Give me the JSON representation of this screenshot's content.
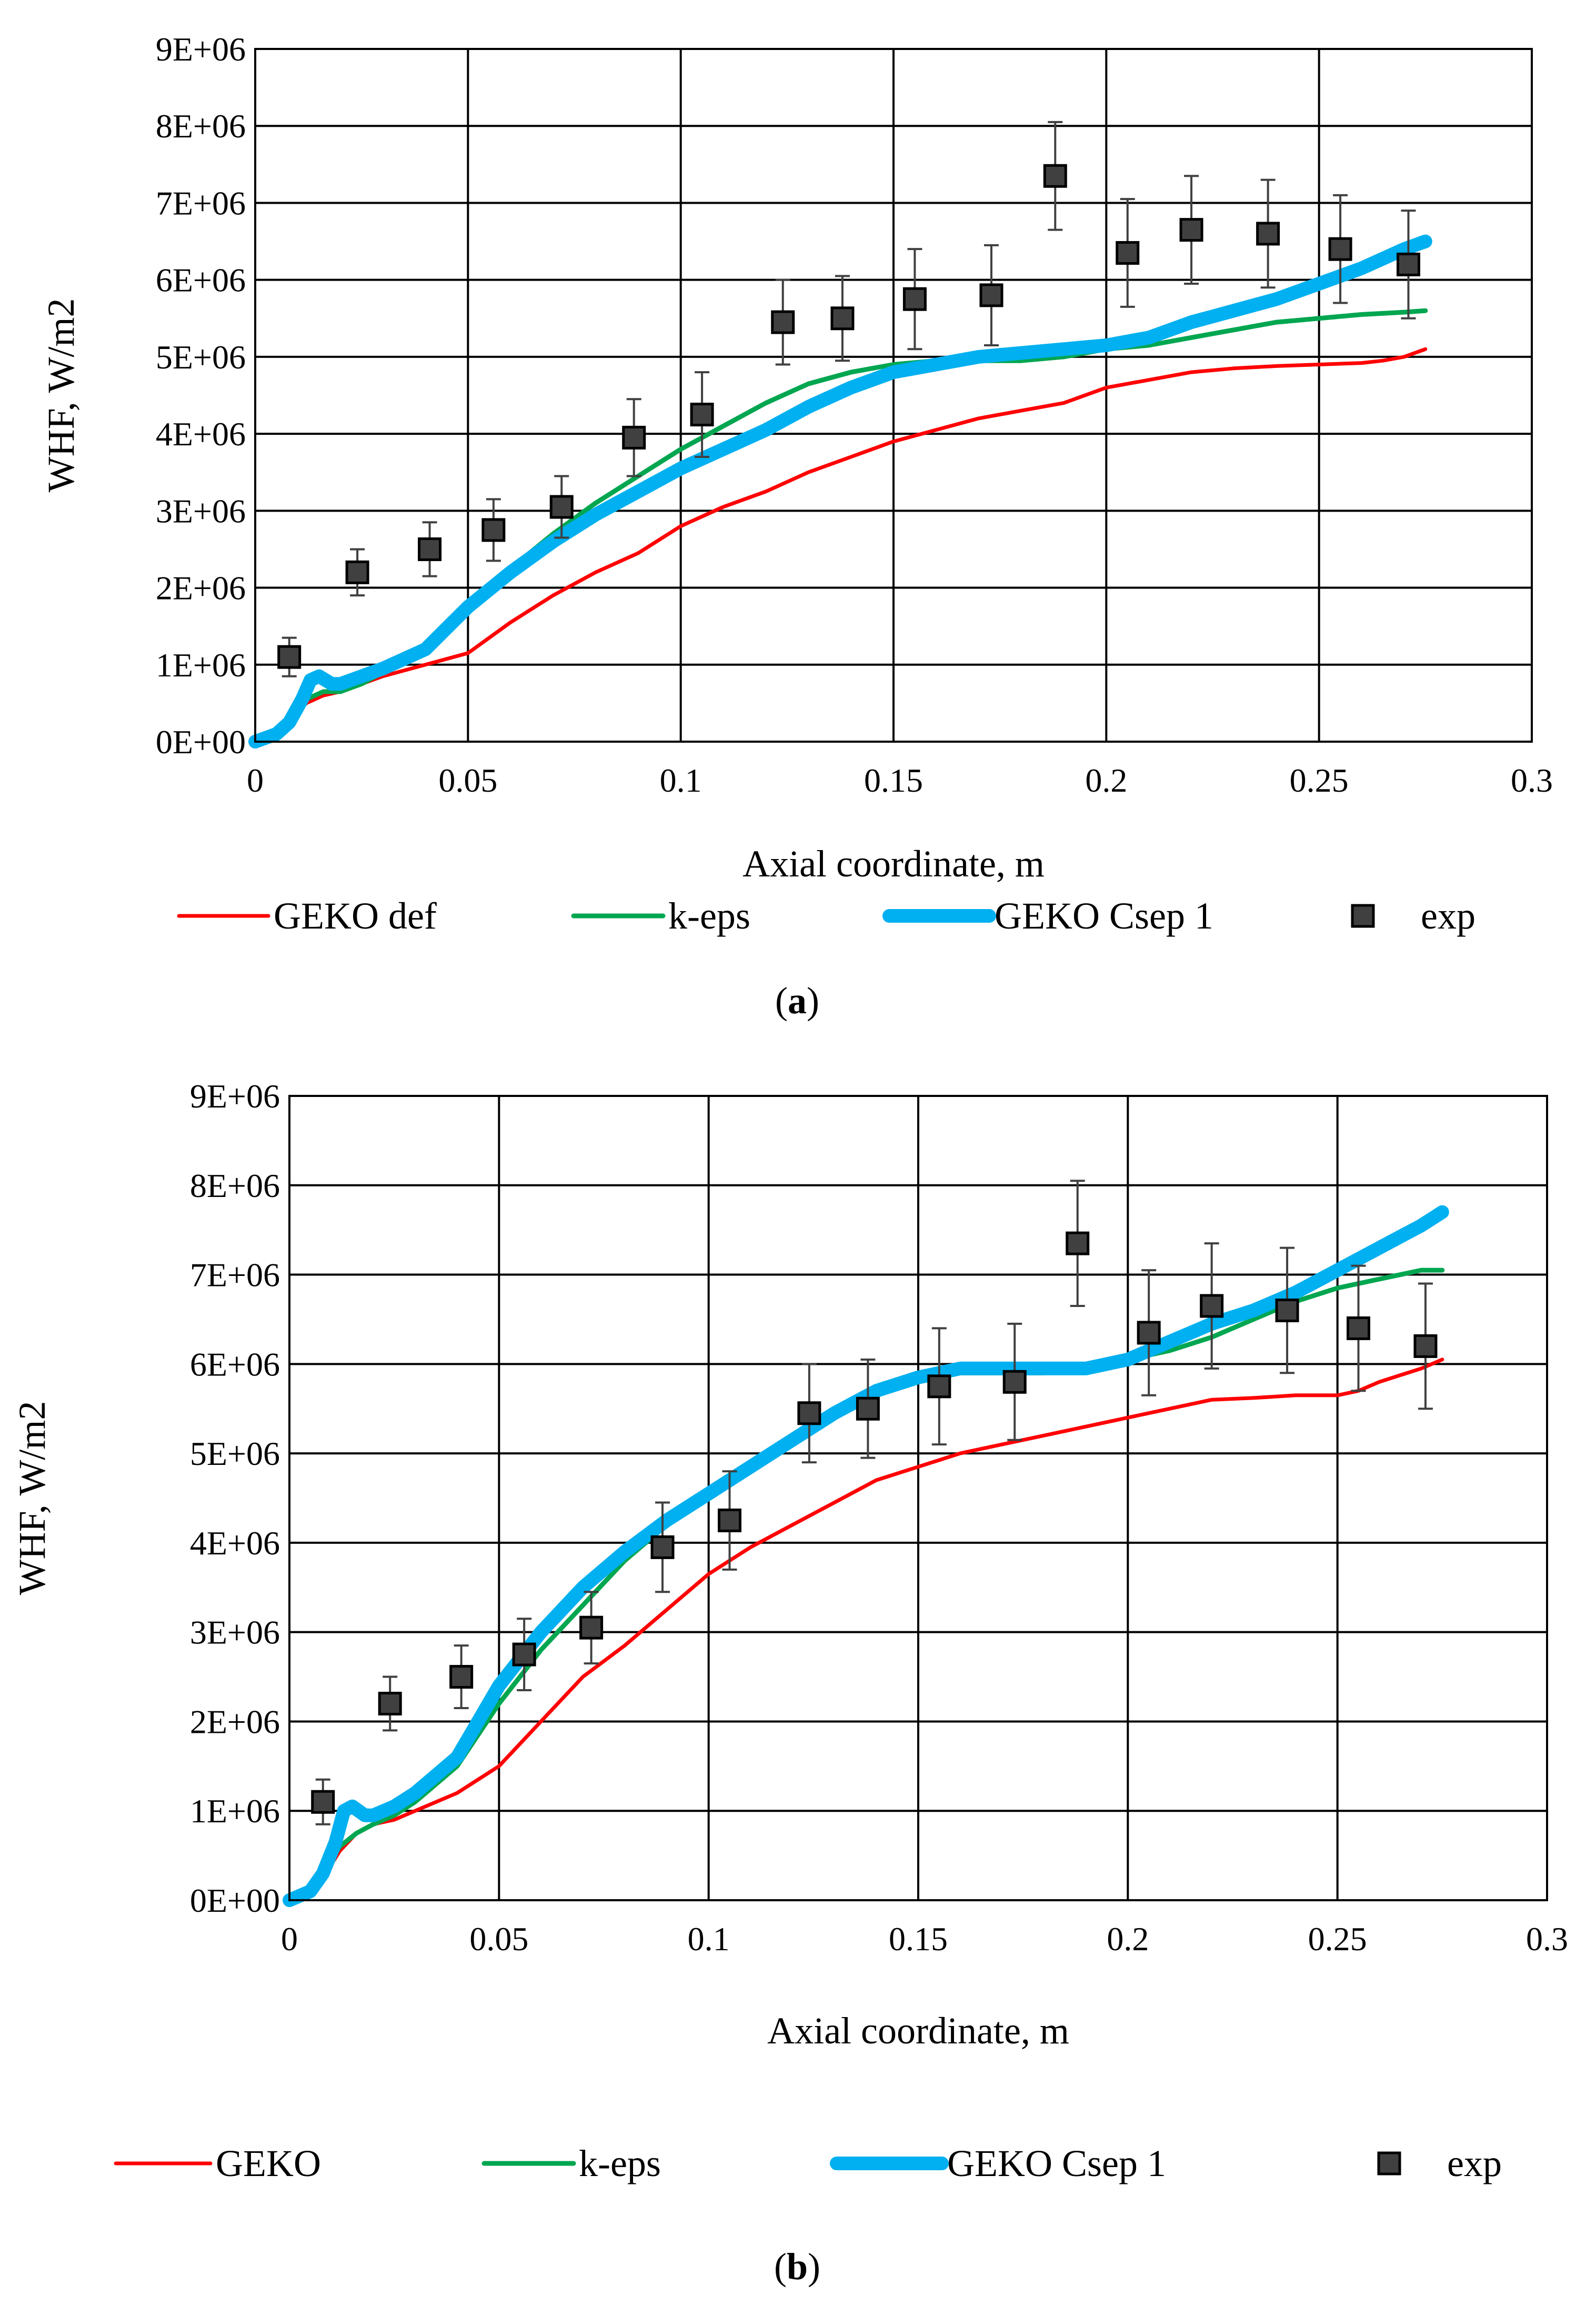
{
  "chart_data": [
    {
      "type": "line",
      "caption_letter": "a",
      "xlabel": "Axial coordinate, m",
      "ylabel": "WHF, W/m2",
      "xlim": [
        0,
        0.3
      ],
      "ylim": [
        0,
        9000000
      ],
      "x_ticks": [
        "0",
        "0.05",
        "0.1",
        "0.15",
        "0.2",
        "0.25",
        "0.3"
      ],
      "y_ticks": [
        "0E+00",
        "1E+06",
        "2E+06",
        "3E+06",
        "4E+06",
        "5E+06",
        "6E+06",
        "7E+06",
        "8E+06",
        "9E+06"
      ],
      "grid": true,
      "legend_position": "bottom",
      "series": [
        {
          "name": "GEKO def",
          "kind": "line",
          "color": "#ff0000",
          "x": [
            0,
            0.005,
            0.008,
            0.012,
            0.016,
            0.02,
            0.025,
            0.03,
            0.04,
            0.05,
            0.06,
            0.07,
            0.08,
            0.09,
            0.1,
            0.11,
            0.12,
            0.13,
            0.14,
            0.15,
            0.16,
            0.17,
            0.18,
            0.19,
            0.2,
            0.21,
            0.22,
            0.23,
            0.24,
            0.25,
            0.26,
            0.265,
            0.27,
            0.275
          ],
          "y": [
            0,
            100000,
            250000,
            500000,
            600000,
            650000,
            750000,
            850000,
            1000000,
            1150000,
            1550000,
            1900000,
            2200000,
            2450000,
            2800000,
            3050000,
            3250000,
            3500000,
            3700000,
            3900000,
            4050000,
            4200000,
            4300000,
            4400000,
            4600000,
            4700000,
            4800000,
            4850000,
            4880000,
            4900000,
            4920000,
            4950000,
            5000000,
            5100000
          ]
        },
        {
          "name": "k-eps",
          "kind": "line",
          "color": "#00a650",
          "x": [
            0,
            0.005,
            0.008,
            0.012,
            0.016,
            0.02,
            0.025,
            0.03,
            0.04,
            0.05,
            0.06,
            0.07,
            0.08,
            0.09,
            0.1,
            0.11,
            0.12,
            0.13,
            0.14,
            0.15,
            0.16,
            0.17,
            0.18,
            0.19,
            0.2,
            0.21,
            0.22,
            0.23,
            0.24,
            0.25,
            0.26,
            0.27,
            0.275
          ],
          "y": [
            0,
            100000,
            300000,
            550000,
            650000,
            650000,
            750000,
            900000,
            1200000,
            1800000,
            2250000,
            2700000,
            3100000,
            3450000,
            3800000,
            4100000,
            4400000,
            4650000,
            4800000,
            4900000,
            4950000,
            4950000,
            4950000,
            5000000,
            5100000,
            5150000,
            5250000,
            5350000,
            5450000,
            5500000,
            5550000,
            5580000,
            5600000
          ]
        },
        {
          "name": "GEKO Csep 1",
          "kind": "line",
          "color": "#00b0f0",
          "x": [
            0,
            0.005,
            0.008,
            0.011,
            0.013,
            0.015,
            0.018,
            0.02,
            0.025,
            0.03,
            0.04,
            0.05,
            0.06,
            0.07,
            0.08,
            0.09,
            0.1,
            0.11,
            0.12,
            0.13,
            0.14,
            0.15,
            0.16,
            0.17,
            0.18,
            0.19,
            0.2,
            0.21,
            0.22,
            0.23,
            0.24,
            0.25,
            0.26,
            0.27,
            0.275
          ],
          "y": [
            0,
            100000,
            250000,
            550000,
            800000,
            850000,
            750000,
            750000,
            850000,
            950000,
            1200000,
            1750000,
            2200000,
            2600000,
            2950000,
            3250000,
            3550000,
            3800000,
            4050000,
            4350000,
            4600000,
            4800000,
            4900000,
            5000000,
            5050000,
            5100000,
            5150000,
            5250000,
            5450000,
            5600000,
            5750000,
            5950000,
            6150000,
            6400000,
            6500000
          ]
        },
        {
          "name": "exp",
          "kind": "scatter",
          "color": "#404040",
          "x": [
            0.008,
            0.024,
            0.041,
            0.056,
            0.072,
            0.089,
            0.105,
            0.124,
            0.138,
            0.155,
            0.173,
            0.188,
            0.205,
            0.22,
            0.238,
            0.255,
            0.271
          ],
          "y": [
            1100000,
            2200000,
            2500000,
            2750000,
            3050000,
            3950000,
            4250000,
            5450000,
            5500000,
            5750000,
            5800000,
            7350000,
            6350000,
            6650000,
            6600000,
            6400000,
            6200000
          ],
          "error": [
            250000,
            300000,
            350000,
            400000,
            400000,
            500000,
            550000,
            550000,
            550000,
            650000,
            650000,
            700000,
            700000,
            700000,
            700000,
            700000,
            700000
          ]
        }
      ]
    },
    {
      "type": "line",
      "caption_letter": "b",
      "xlabel": "Axial coordinate, m",
      "ylabel": "WHF, W/m2",
      "xlim": [
        0,
        0.3
      ],
      "ylim": [
        0,
        9000000
      ],
      "x_ticks": [
        "0",
        "0.05",
        "0.1",
        "0.15",
        "0.2",
        "0.25",
        "0.3"
      ],
      "y_ticks": [
        "0E+00",
        "1E+06",
        "2E+06",
        "3E+06",
        "4E+06",
        "5E+06",
        "6E+06",
        "7E+06",
        "8E+06",
        "9E+06"
      ],
      "grid": true,
      "legend_position": "bottom",
      "series": [
        {
          "name": "GEKO",
          "kind": "line",
          "color": "#ff0000",
          "x": [
            0,
            0.005,
            0.008,
            0.012,
            0.016,
            0.02,
            0.025,
            0.03,
            0.04,
            0.05,
            0.06,
            0.07,
            0.08,
            0.09,
            0.1,
            0.11,
            0.12,
            0.13,
            0.14,
            0.15,
            0.16,
            0.17,
            0.18,
            0.19,
            0.2,
            0.21,
            0.22,
            0.23,
            0.24,
            0.25,
            0.255,
            0.26,
            0.27,
            0.275
          ],
          "y": [
            0,
            100000,
            250000,
            550000,
            750000,
            850000,
            900000,
            1000000,
            1200000,
            1500000,
            2000000,
            2500000,
            2850000,
            3250000,
            3650000,
            3950000,
            4200000,
            4450000,
            4700000,
            4850000,
            5000000,
            5100000,
            5200000,
            5300000,
            5400000,
            5500000,
            5600000,
            5620000,
            5650000,
            5650000,
            5700000,
            5800000,
            5950000,
            6050000
          ]
        },
        {
          "name": "k-eps",
          "kind": "line",
          "color": "#00a650",
          "x": [
            0,
            0.005,
            0.008,
            0.012,
            0.016,
            0.02,
            0.025,
            0.03,
            0.04,
            0.05,
            0.06,
            0.07,
            0.08,
            0.09,
            0.1,
            0.11,
            0.12,
            0.13,
            0.14,
            0.15,
            0.16,
            0.17,
            0.18,
            0.19,
            0.2,
            0.21,
            0.22,
            0.23,
            0.24,
            0.25,
            0.26,
            0.27,
            0.275
          ],
          "y": [
            0,
            100000,
            300000,
            600000,
            750000,
            850000,
            950000,
            1100000,
            1500000,
            2200000,
            2800000,
            3300000,
            3800000,
            4200000,
            4550000,
            4900000,
            5200000,
            5450000,
            5650000,
            5800000,
            5900000,
            5900000,
            5900000,
            5950000,
            6050000,
            6150000,
            6300000,
            6500000,
            6700000,
            6850000,
            6950000,
            7050000,
            7050000
          ]
        },
        {
          "name": "GEKO Csep 1",
          "kind": "line",
          "color": "#00b0f0",
          "x": [
            0,
            0.005,
            0.008,
            0.011,
            0.013,
            0.015,
            0.018,
            0.02,
            0.025,
            0.03,
            0.04,
            0.05,
            0.06,
            0.07,
            0.08,
            0.09,
            0.1,
            0.11,
            0.12,
            0.13,
            0.14,
            0.15,
            0.16,
            0.17,
            0.18,
            0.19,
            0.2,
            0.21,
            0.22,
            0.23,
            0.24,
            0.25,
            0.26,
            0.27,
            0.275
          ],
          "y": [
            0,
            100000,
            300000,
            650000,
            1000000,
            1050000,
            950000,
            950000,
            1050000,
            1200000,
            1600000,
            2400000,
            3000000,
            3500000,
            3900000,
            4250000,
            4550000,
            4850000,
            5150000,
            5450000,
            5700000,
            5850000,
            5950000,
            5950000,
            5950000,
            5950000,
            6050000,
            6250000,
            6450000,
            6600000,
            6800000,
            7050000,
            7300000,
            7550000,
            7700000
          ]
        },
        {
          "name": "exp",
          "kind": "scatter",
          "color": "#404040",
          "x": [
            0.008,
            0.024,
            0.041,
            0.056,
            0.072,
            0.089,
            0.105,
            0.124,
            0.138,
            0.155,
            0.173,
            0.188,
            0.205,
            0.22,
            0.238,
            0.255,
            0.271
          ],
          "y": [
            1100000,
            2200000,
            2500000,
            2750000,
            3050000,
            3950000,
            4250000,
            5450000,
            5500000,
            5750000,
            5800000,
            7350000,
            6350000,
            6650000,
            6600000,
            6400000,
            6200000
          ],
          "error": [
            250000,
            300000,
            350000,
            400000,
            400000,
            500000,
            550000,
            550000,
            550000,
            650000,
            650000,
            700000,
            700000,
            700000,
            700000,
            700000,
            700000
          ]
        }
      ]
    }
  ]
}
